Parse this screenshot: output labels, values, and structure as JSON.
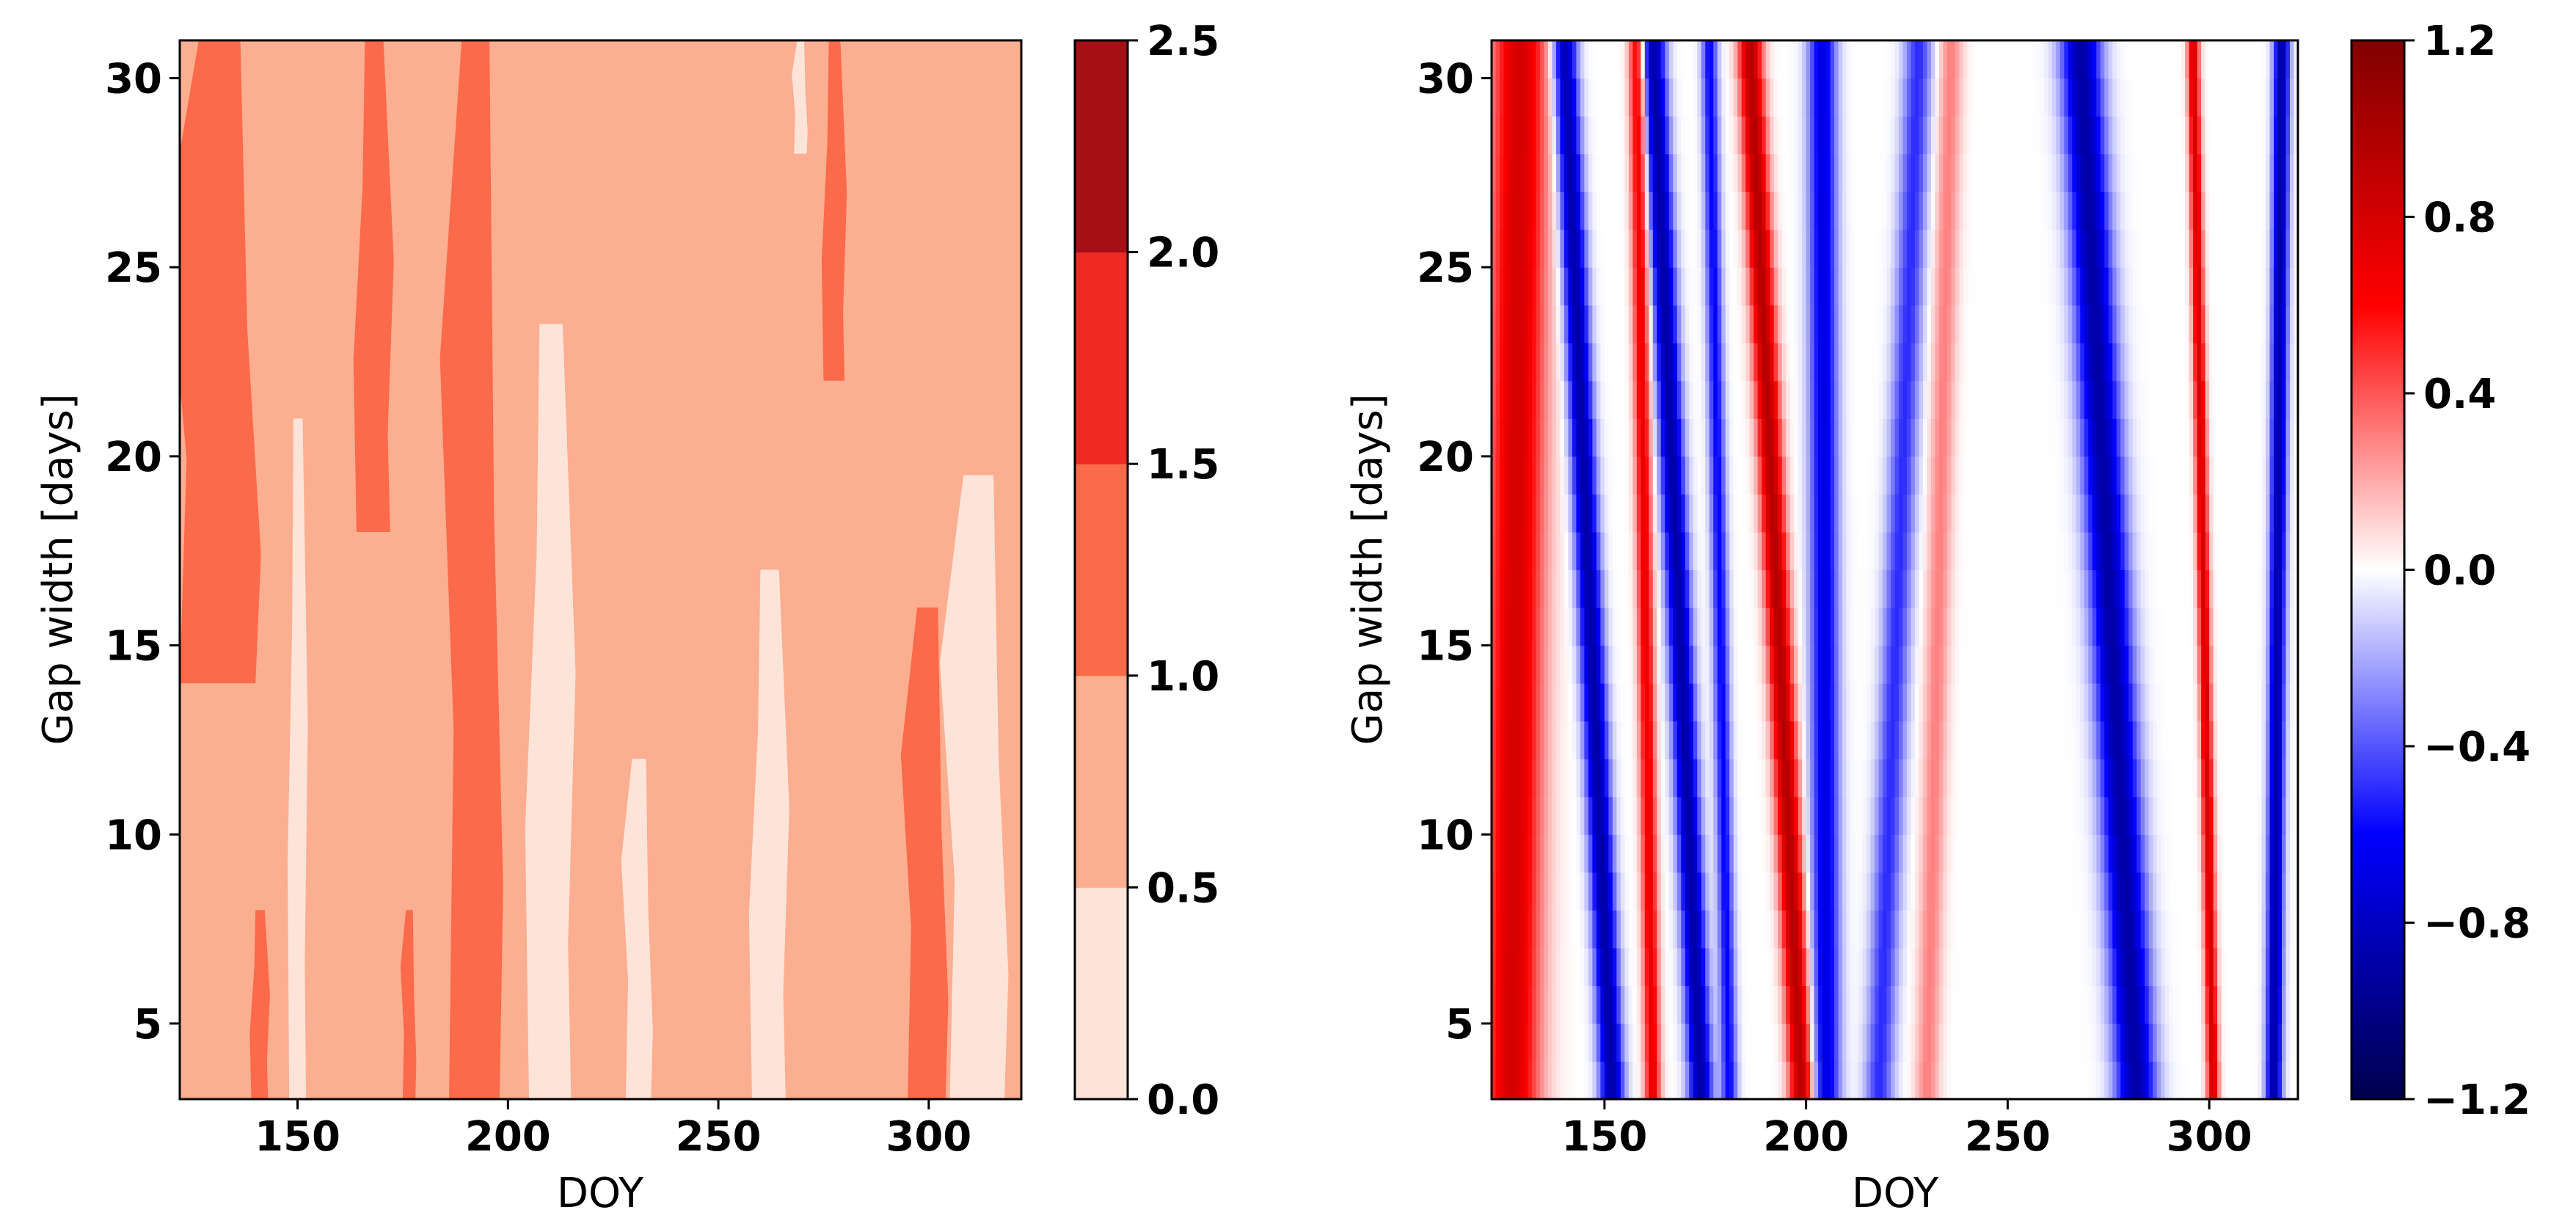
{
  "chart_data": [
    {
      "type": "heatmap",
      "style": "filled-contour",
      "xlabel": "DOY",
      "ylabel": "Gap width [days]",
      "xlim": [
        122,
        322
      ],
      "ylim": [
        3,
        31
      ],
      "xticks": [
        150,
        200,
        250,
        300
      ],
      "yticks": [
        5,
        10,
        15,
        20,
        25,
        30
      ],
      "colormap": "Reds",
      "colorbar": {
        "levels": [
          0.0,
          0.5,
          1.0,
          1.5,
          2.0,
          2.5
        ],
        "tick_labels": [
          "0.0",
          "0.5",
          "1.0",
          "1.5",
          "2.0",
          "2.5"
        ],
        "level_colors": [
          "#fee4d8",
          "#fcae91",
          "#fb6a4a",
          "#ef2a25",
          "#a50f15"
        ]
      },
      "background_level": "0.5–1.0",
      "regions": [
        {
          "level": "1.0–1.5",
          "doy_range": [
            122,
            140
          ],
          "gap_range": [
            14,
            31
          ]
        },
        {
          "level": "1.0–1.5",
          "doy_range": [
            164,
            172
          ],
          "gap_range": [
            18,
            31
          ]
        },
        {
          "level": "1.0–1.5",
          "doy_range": [
            186,
            198
          ],
          "gap_range": [
            3,
            31
          ]
        },
        {
          "level": "1.0–1.5",
          "doy_range": [
            275,
            280
          ],
          "gap_range": [
            22,
            31
          ]
        },
        {
          "level": "1.0–1.5",
          "doy_range": [
            295,
            304
          ],
          "gap_range": [
            3,
            16
          ]
        },
        {
          "level": "1.0–1.5",
          "doy_range": [
            139,
            143
          ],
          "gap_range": [
            3,
            8
          ]
        },
        {
          "level": "1.0–1.5",
          "doy_range": [
            175,
            178
          ],
          "gap_range": [
            3,
            8
          ]
        },
        {
          "level": "0.0–0.5",
          "doy_range": [
            205,
            215
          ],
          "gap_range": [
            3,
            23.5
          ]
        },
        {
          "level": "0.0–0.5",
          "doy_range": [
            228,
            234
          ],
          "gap_range": [
            3,
            12
          ]
        },
        {
          "level": "0.0–0.5",
          "doy_range": [
            258,
            266
          ],
          "gap_range": [
            3,
            17
          ]
        },
        {
          "level": "0.0–0.5",
          "doy_range": [
            305,
            318
          ],
          "gap_range": [
            3,
            19.5
          ]
        },
        {
          "level": "0.0–0.5",
          "doy_range": [
            148,
            152
          ],
          "gap_range": [
            3,
            21
          ]
        },
        {
          "level": "0.0–0.5",
          "doy_range": [
            268,
            271
          ],
          "gap_range": [
            28,
            31
          ]
        }
      ]
    },
    {
      "type": "heatmap",
      "style": "continuous",
      "xlabel": "DOY",
      "ylabel": "Gap width [days]",
      "xlim": [
        122,
        322
      ],
      "ylim": [
        3,
        31
      ],
      "xticks": [
        150,
        200,
        250,
        300
      ],
      "yticks": [
        5,
        10,
        15,
        20,
        25,
        30
      ],
      "colormap": "seismic",
      "colorbar": {
        "range": [
          -1.2,
          1.2
        ],
        "ticks": [
          1.2,
          0.8,
          0.4,
          0.0,
          -0.4,
          -0.8,
          -1.2
        ],
        "tick_labels": [
          "1.2",
          "0.8",
          "0.4",
          "0.0",
          "−0.4",
          "−0.8",
          "−1.2"
        ]
      },
      "bands": [
        {
          "doy_at_gap3": 127,
          "doy_at_gap31": 129,
          "value": 0.8,
          "width": 14
        },
        {
          "doy_at_gap3": 152,
          "doy_at_gap31": 140,
          "value": -0.9,
          "width": 6
        },
        {
          "doy_at_gap3": 162,
          "doy_at_gap31": 158,
          "value": 0.7,
          "width": 4
        },
        {
          "doy_at_gap3": 174,
          "doy_at_gap31": 162,
          "value": -0.9,
          "width": 6
        },
        {
          "doy_at_gap3": 181,
          "doy_at_gap31": 176,
          "value": -0.6,
          "width": 4
        },
        {
          "doy_at_gap3": 199,
          "doy_at_gap31": 186,
          "value": 0.95,
          "width": 6
        },
        {
          "doy_at_gap3": 205,
          "doy_at_gap31": 204,
          "value": -0.7,
          "width": 7
        },
        {
          "doy_at_gap3": 218,
          "doy_at_gap31": 228,
          "value": -0.5,
          "width": 7
        },
        {
          "doy_at_gap3": 230,
          "doy_at_gap31": 236,
          "value": 0.3,
          "width": 6
        },
        {
          "doy_at_gap3": 282,
          "doy_at_gap31": 268,
          "value": -0.9,
          "width": 10
        },
        {
          "doy_at_gap3": 301,
          "doy_at_gap31": 296,
          "value": 0.8,
          "width": 3
        },
        {
          "doy_at_gap3": 316,
          "doy_at_gap31": 318,
          "value": -0.9,
          "width": 4
        }
      ]
    }
  ]
}
